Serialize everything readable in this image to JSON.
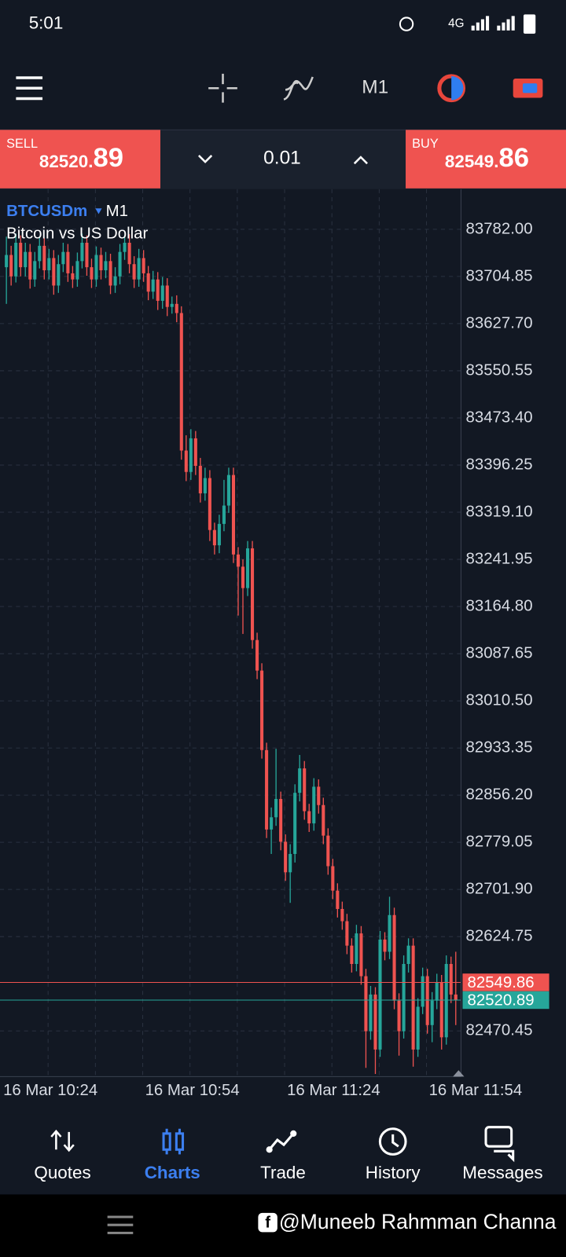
{
  "status_bar": {
    "time": "5:01",
    "network": "4G"
  },
  "toolbar": {
    "timeframe": "M1"
  },
  "trade_panel": {
    "sell_label": "SELL",
    "sell_price_main": "82520.",
    "sell_price_big": "89",
    "volume": "0.01",
    "buy_label": "BUY",
    "buy_price_main": "82549.",
    "buy_price_big": "86"
  },
  "chart_data": {
    "type": "candlestick",
    "symbol": "BTCUSDm",
    "timeframe": "M1",
    "description": "Bitcoin vs US Dollar",
    "categories": [
      "16 Mar 10:24",
      null,
      null,
      null,
      null,
      null,
      null,
      null,
      null,
      null,
      null,
      null,
      null,
      null,
      null,
      null,
      null,
      null,
      null,
      null,
      null,
      null,
      null,
      null,
      null,
      null,
      null,
      null,
      null,
      null,
      "16 Mar 10:54",
      null,
      null,
      null,
      null,
      null,
      null,
      null,
      null,
      null,
      null,
      null,
      null,
      null,
      null,
      null,
      null,
      null,
      null,
      null,
      null,
      null,
      null,
      null,
      null,
      null,
      null,
      null,
      null,
      null,
      "16 Mar 11:24",
      null,
      null,
      null,
      null,
      null,
      null,
      null,
      null,
      null,
      null,
      null,
      null,
      null,
      null,
      null,
      null,
      null,
      null,
      null,
      null,
      null,
      null,
      null,
      null,
      null,
      null,
      null,
      null,
      null,
      "16 Mar 11:54",
      null,
      null,
      null,
      null,
      null
    ],
    "open": [
      83720,
      83740,
      83705,
      83760,
      83720,
      83745,
      83700,
      83730,
      83755,
      83715,
      83735,
      83690,
      83725,
      83745,
      83710,
      83700,
      83730,
      83760,
      83720,
      83700,
      83740,
      83715,
      83730,
      83690,
      83705,
      83745,
      83760,
      83725,
      83700,
      83735,
      83710,
      83680,
      83700,
      83665,
      83690,
      83655,
      83660,
      83645,
      83420,
      83385,
      83440,
      83395,
      83350,
      83375,
      83290,
      83265,
      83300,
      83330,
      83380,
      83250,
      83230,
      83195,
      83260,
      83110,
      83060,
      82930,
      82800,
      82820,
      82850,
      82780,
      82730,
      82760,
      82860,
      82900,
      82830,
      82810,
      82870,
      82840,
      82790,
      82740,
      82700,
      82670,
      82650,
      82610,
      82580,
      82630,
      82560,
      82470,
      82530,
      82440,
      82620,
      82600,
      82660,
      82520,
      82470,
      82580,
      82610,
      82440,
      82510,
      82560,
      82480,
      82520,
      82550,
      82460,
      82580,
      82530
    ],
    "high": [
      83770,
      83755,
      83775,
      83772,
      83760,
      83758,
      83745,
      83770,
      83768,
      83750,
      83748,
      83740,
      83760,
      83758,
      83722,
      83744,
      83775,
      83772,
      83734,
      83754,
      83752,
      83745,
      83742,
      83720,
      83758,
      83772,
      83774,
      83738,
      83750,
      83748,
      83722,
      83714,
      83712,
      83704,
      83702,
      83672,
      83674,
      83656,
      83445,
      83455,
      83452,
      83408,
      83392,
      83388,
      83302,
      83315,
      83372,
      83392,
      83392,
      83262,
      83242,
      83272,
      83272,
      83122,
      83072,
      82942,
      82836,
      82932,
      82862,
      82792,
      82776,
      82874,
      82922,
      82912,
      82842,
      82884,
      82882,
      82852,
      82802,
      82752,
      82712,
      82682,
      82662,
      82622,
      82644,
      82642,
      82572,
      82544,
      82542,
      82634,
      82632,
      82690,
      82672,
      82532,
      82594,
      82622,
      82622,
      82524,
      82574,
      82572,
      82534,
      82564,
      82562,
      82594,
      82592,
      82600
    ],
    "low": [
      83660,
      83690,
      83695,
      83705,
      83705,
      83685,
      83688,
      83718,
      83700,
      83700,
      83675,
      83678,
      83712,
      83696,
      83686,
      83688,
      83718,
      83706,
      83686,
      83688,
      83700,
      83702,
      83676,
      83678,
      83692,
      83732,
      83710,
      83686,
      83688,
      83696,
      83666,
      83668,
      83650,
      83652,
      83640,
      83644,
      83630,
      83405,
      83370,
      83372,
      83380,
      83335,
      83338,
      83272,
      83250,
      83252,
      83288,
      83318,
      83236,
      83150,
      83120,
      83182,
      83096,
      83046,
      82916,
      82786,
      82760,
      82806,
      82766,
      82716,
      82680,
      82746,
      82846,
      82816,
      82796,
      82798,
      82826,
      82776,
      82726,
      82686,
      82656,
      82636,
      82596,
      82566,
      82568,
      82546,
      82410,
      82456,
      82400,
      82428,
      82586,
      82588,
      82506,
      82430,
      82458,
      82566,
      82412,
      82428,
      82498,
      82466,
      82452,
      82506,
      82440,
      82448,
      82516,
      82480
    ],
    "close": [
      83740,
      83705,
      83760,
      83720,
      83745,
      83700,
      83730,
      83755,
      83715,
      83735,
      83690,
      83725,
      83745,
      83710,
      83700,
      83730,
      83760,
      83720,
      83700,
      83740,
      83715,
      83730,
      83690,
      83705,
      83745,
      83760,
      83725,
      83700,
      83735,
      83710,
      83680,
      83700,
      83665,
      83690,
      83655,
      83660,
      83645,
      83420,
      83385,
      83440,
      83395,
      83350,
      83375,
      83290,
      83265,
      83300,
      83330,
      83380,
      83250,
      83230,
      83195,
      83260,
      83110,
      83060,
      82930,
      82800,
      82820,
      82850,
      82780,
      82730,
      82760,
      82860,
      82900,
      82830,
      82810,
      82870,
      82840,
      82790,
      82740,
      82700,
      82670,
      82650,
      82610,
      82580,
      82630,
      82560,
      82470,
      82530,
      82440,
      82620,
      82600,
      82660,
      82520,
      82470,
      82580,
      82610,
      82440,
      82510,
      82560,
      82480,
      82520,
      82550,
      82460,
      82580,
      82530,
      82520.89
    ],
    "up_color": "#26a69a",
    "down_color": "#ef5350",
    "ylim": [
      82399.6,
      83842.4
    ],
    "yticks": [
      {
        "value": 83782,
        "label": "83782.00"
      },
      83704.85,
      {
        "value": 83627.7,
        "label": "83627.70"
      },
      83550.55,
      {
        "value": 83473.4,
        "label": "83473.40"
      },
      83396.25,
      {
        "value": 83319.1,
        "label": "83319.10"
      },
      83241.95,
      {
        "value": 83164.8,
        "label": "83164.80"
      },
      83087.65,
      {
        "value": 83010.5,
        "label": "83010.50"
      },
      82933.35,
      {
        "value": 82856.2,
        "label": "82856.20"
      },
      82779.05,
      {
        "value": 82701.9,
        "label": "82701.90"
      },
      82624.75,
      82470.45
    ],
    "grid": true,
    "price_lines": [
      {
        "value": 82549.86,
        "color": "#ef5350"
      },
      {
        "value": 82520.89,
        "color": "#26a69a"
      }
    ]
  },
  "bottom_nav": {
    "items": [
      "Quotes",
      "Charts",
      "Trade",
      "History",
      "Messages"
    ],
    "active": 1
  },
  "watermark": "@Muneeb Rahmman Channa"
}
